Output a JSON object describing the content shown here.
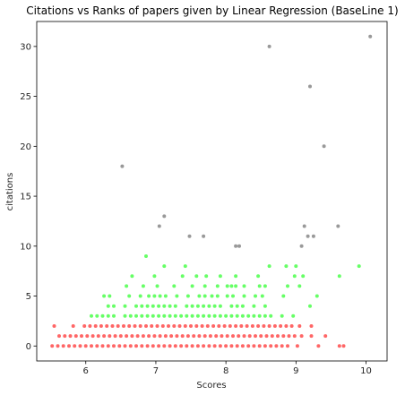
{
  "chart_data": {
    "type": "scatter",
    "title": "Citations vs Ranks of papers given by Linear Regression (BaseLine 1)",
    "xlabel": "Scores",
    "ylabel": "citations",
    "xlim": [
      5.3,
      10.3
    ],
    "ylim": [
      -1.5,
      32.5
    ],
    "xticks": [
      "6",
      "7",
      "8",
      "9",
      "10"
    ],
    "yticks": [
      "0",
      "5",
      "10",
      "15",
      "20",
      "25",
      "30"
    ],
    "grid": false,
    "legend": "none",
    "series": [
      {
        "color": "#ff0000",
        "points": [
          [
            5.52,
            0
          ],
          [
            5.6,
            0
          ],
          [
            5.68,
            0
          ],
          [
            5.76,
            0
          ],
          [
            5.84,
            0
          ],
          [
            5.92,
            0
          ],
          [
            6.0,
            0
          ],
          [
            6.08,
            0
          ],
          [
            6.16,
            0
          ],
          [
            6.24,
            0
          ],
          [
            6.32,
            0
          ],
          [
            6.4,
            0
          ],
          [
            6.48,
            0
          ],
          [
            6.56,
            0
          ],
          [
            6.64,
            0
          ],
          [
            6.72,
            0
          ],
          [
            6.8,
            0
          ],
          [
            6.88,
            0
          ],
          [
            6.96,
            0
          ],
          [
            7.04,
            0
          ],
          [
            7.12,
            0
          ],
          [
            7.2,
            0
          ],
          [
            7.28,
            0
          ],
          [
            7.36,
            0
          ],
          [
            7.44,
            0
          ],
          [
            7.52,
            0
          ],
          [
            7.6,
            0
          ],
          [
            7.68,
            0
          ],
          [
            7.76,
            0
          ],
          [
            7.84,
            0
          ],
          [
            7.92,
            0
          ],
          [
            8.0,
            0
          ],
          [
            8.08,
            0
          ],
          [
            8.16,
            0
          ],
          [
            8.24,
            0
          ],
          [
            8.32,
            0
          ],
          [
            8.4,
            0
          ],
          [
            8.48,
            0
          ],
          [
            8.56,
            0
          ],
          [
            8.64,
            0
          ],
          [
            8.72,
            0
          ],
          [
            8.8,
            0
          ],
          [
            8.88,
            0
          ],
          [
            9.02,
            0
          ],
          [
            9.32,
            0
          ],
          [
            9.62,
            0
          ],
          [
            9.68,
            0
          ],
          [
            5.62,
            1
          ],
          [
            5.7,
            1
          ],
          [
            5.78,
            1
          ],
          [
            5.86,
            1
          ],
          [
            5.94,
            1
          ],
          [
            6.02,
            1
          ],
          [
            6.1,
            1
          ],
          [
            6.18,
            1
          ],
          [
            6.26,
            1
          ],
          [
            6.34,
            1
          ],
          [
            6.42,
            1
          ],
          [
            6.5,
            1
          ],
          [
            6.58,
            1
          ],
          [
            6.66,
            1
          ],
          [
            6.74,
            1
          ],
          [
            6.82,
            1
          ],
          [
            6.9,
            1
          ],
          [
            6.98,
            1
          ],
          [
            7.06,
            1
          ],
          [
            7.14,
            1
          ],
          [
            7.22,
            1
          ],
          [
            7.3,
            1
          ],
          [
            7.38,
            1
          ],
          [
            7.46,
            1
          ],
          [
            7.54,
            1
          ],
          [
            7.62,
            1
          ],
          [
            7.7,
            1
          ],
          [
            7.78,
            1
          ],
          [
            7.86,
            1
          ],
          [
            7.94,
            1
          ],
          [
            8.02,
            1
          ],
          [
            8.1,
            1
          ],
          [
            8.18,
            1
          ],
          [
            8.26,
            1
          ],
          [
            8.34,
            1
          ],
          [
            8.42,
            1
          ],
          [
            8.5,
            1
          ],
          [
            8.58,
            1
          ],
          [
            8.66,
            1
          ],
          [
            8.74,
            1
          ],
          [
            8.82,
            1
          ],
          [
            8.9,
            1
          ],
          [
            8.98,
            1
          ],
          [
            9.08,
            1
          ],
          [
            9.22,
            1
          ],
          [
            9.42,
            1
          ],
          [
            5.55,
            2
          ],
          [
            5.82,
            2
          ],
          [
            5.98,
            2
          ],
          [
            6.06,
            2
          ],
          [
            6.14,
            2
          ],
          [
            6.22,
            2
          ],
          [
            6.3,
            2
          ],
          [
            6.38,
            2
          ],
          [
            6.46,
            2
          ],
          [
            6.54,
            2
          ],
          [
            6.62,
            2
          ],
          [
            6.7,
            2
          ],
          [
            6.78,
            2
          ],
          [
            6.86,
            2
          ],
          [
            6.94,
            2
          ],
          [
            7.02,
            2
          ],
          [
            7.1,
            2
          ],
          [
            7.18,
            2
          ],
          [
            7.26,
            2
          ],
          [
            7.34,
            2
          ],
          [
            7.42,
            2
          ],
          [
            7.5,
            2
          ],
          [
            7.58,
            2
          ],
          [
            7.66,
            2
          ],
          [
            7.74,
            2
          ],
          [
            7.82,
            2
          ],
          [
            7.9,
            2
          ],
          [
            7.98,
            2
          ],
          [
            8.06,
            2
          ],
          [
            8.14,
            2
          ],
          [
            8.22,
            2
          ],
          [
            8.3,
            2
          ],
          [
            8.38,
            2
          ],
          [
            8.46,
            2
          ],
          [
            8.54,
            2
          ],
          [
            8.62,
            2
          ],
          [
            8.7,
            2
          ],
          [
            8.78,
            2
          ],
          [
            8.86,
            2
          ],
          [
            8.94,
            2
          ],
          [
            9.05,
            2
          ],
          [
            9.22,
            2
          ]
        ]
      },
      {
        "color": "#00ff00",
        "points": [
          [
            6.08,
            3
          ],
          [
            6.16,
            3
          ],
          [
            6.24,
            3
          ],
          [
            6.32,
            3
          ],
          [
            6.4,
            3
          ],
          [
            6.56,
            3
          ],
          [
            6.64,
            3
          ],
          [
            6.72,
            3
          ],
          [
            6.8,
            3
          ],
          [
            6.88,
            3
          ],
          [
            6.96,
            3
          ],
          [
            7.04,
            3
          ],
          [
            7.12,
            3
          ],
          [
            7.2,
            3
          ],
          [
            7.28,
            3
          ],
          [
            7.36,
            3
          ],
          [
            7.44,
            3
          ],
          [
            7.52,
            3
          ],
          [
            7.6,
            3
          ],
          [
            7.68,
            3
          ],
          [
            7.76,
            3
          ],
          [
            7.84,
            3
          ],
          [
            7.92,
            3
          ],
          [
            8.0,
            3
          ],
          [
            8.08,
            3
          ],
          [
            8.16,
            3
          ],
          [
            8.24,
            3
          ],
          [
            8.32,
            3
          ],
          [
            8.4,
            3
          ],
          [
            8.48,
            3
          ],
          [
            8.56,
            3
          ],
          [
            8.64,
            3
          ],
          [
            8.8,
            3
          ],
          [
            8.96,
            3
          ],
          [
            6.32,
            4
          ],
          [
            6.4,
            4
          ],
          [
            6.56,
            4
          ],
          [
            6.72,
            4
          ],
          [
            6.8,
            4
          ],
          [
            6.88,
            4
          ],
          [
            6.96,
            4
          ],
          [
            7.04,
            4
          ],
          [
            7.12,
            4
          ],
          [
            7.2,
            4
          ],
          [
            7.28,
            4
          ],
          [
            7.44,
            4
          ],
          [
            7.52,
            4
          ],
          [
            7.6,
            4
          ],
          [
            7.68,
            4
          ],
          [
            7.76,
            4
          ],
          [
            7.84,
            4
          ],
          [
            7.92,
            4
          ],
          [
            8.08,
            4
          ],
          [
            8.16,
            4
          ],
          [
            8.24,
            4
          ],
          [
            8.4,
            4
          ],
          [
            8.56,
            4
          ],
          [
            9.2,
            4
          ],
          [
            6.26,
            5
          ],
          [
            6.34,
            5
          ],
          [
            6.62,
            5
          ],
          [
            6.78,
            5
          ],
          [
            6.9,
            5
          ],
          [
            6.98,
            5
          ],
          [
            7.06,
            5
          ],
          [
            7.14,
            5
          ],
          [
            7.3,
            5
          ],
          [
            7.46,
            5
          ],
          [
            7.62,
            5
          ],
          [
            7.7,
            5
          ],
          [
            7.8,
            5
          ],
          [
            7.88,
            5
          ],
          [
            8.02,
            5
          ],
          [
            8.1,
            5
          ],
          [
            8.26,
            5
          ],
          [
            8.42,
            5
          ],
          [
            8.52,
            5
          ],
          [
            8.82,
            5
          ],
          [
            9.3,
            5
          ],
          [
            6.58,
            6
          ],
          [
            6.82,
            6
          ],
          [
            7.02,
            6
          ],
          [
            7.26,
            6
          ],
          [
            7.52,
            6
          ],
          [
            7.7,
            6
          ],
          [
            7.88,
            6
          ],
          [
            8.02,
            6
          ],
          [
            8.08,
            6
          ],
          [
            8.14,
            6
          ],
          [
            8.26,
            6
          ],
          [
            8.48,
            6
          ],
          [
            8.56,
            6
          ],
          [
            8.88,
            6
          ],
          [
            9.05,
            6
          ],
          [
            6.66,
            7
          ],
          [
            6.98,
            7
          ],
          [
            7.38,
            7
          ],
          [
            7.58,
            7
          ],
          [
            7.72,
            7
          ],
          [
            7.92,
            7
          ],
          [
            8.14,
            7
          ],
          [
            8.46,
            7
          ],
          [
            8.98,
            7
          ],
          [
            9.1,
            7
          ],
          [
            9.62,
            7
          ],
          [
            7.12,
            8
          ],
          [
            7.42,
            8
          ],
          [
            8.62,
            8
          ],
          [
            8.86,
            8
          ],
          [
            9.0,
            8
          ],
          [
            9.9,
            8
          ],
          [
            6.86,
            9
          ]
        ]
      },
      {
        "color": "#555555",
        "points": [
          [
            6.52,
            18
          ],
          [
            7.05,
            12
          ],
          [
            7.12,
            13
          ],
          [
            7.48,
            11
          ],
          [
            7.68,
            11
          ],
          [
            8.14,
            10
          ],
          [
            8.19,
            10
          ],
          [
            8.62,
            30
          ],
          [
            9.08,
            10
          ],
          [
            9.12,
            12
          ],
          [
            9.17,
            11
          ],
          [
            9.2,
            26
          ],
          [
            9.25,
            11
          ],
          [
            9.4,
            20
          ],
          [
            9.6,
            12
          ],
          [
            10.06,
            31
          ]
        ]
      }
    ]
  }
}
